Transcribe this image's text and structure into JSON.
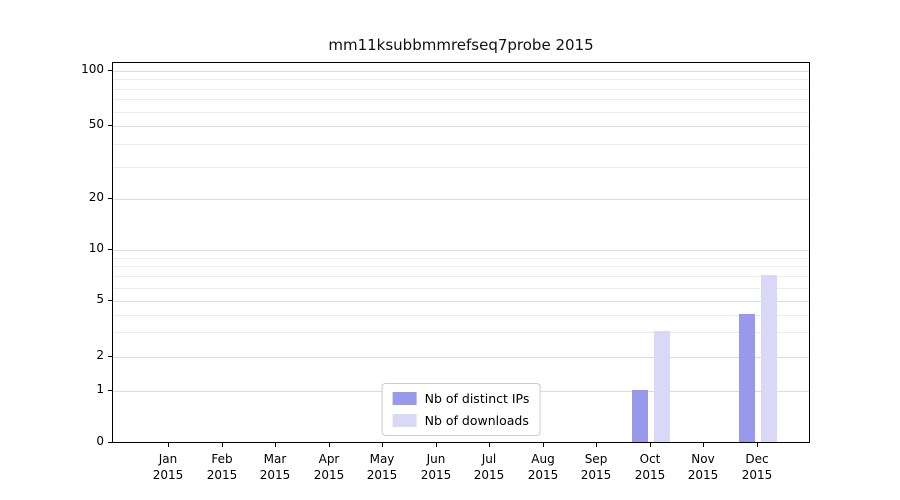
{
  "chart_data": {
    "type": "bar",
    "title": "mm11ksubbmmrefseq7probe 2015",
    "categories": [
      "Jan 2015",
      "Feb 2015",
      "Mar 2015",
      "Apr 2015",
      "May 2015",
      "Jun 2015",
      "Jul 2015",
      "Aug 2015",
      "Sep 2015",
      "Oct 2015",
      "Nov 2015",
      "Dec 2015"
    ],
    "series": [
      {
        "name": "Nb of distinct IPs",
        "color": "#9999ec",
        "values": [
          0,
          0,
          0,
          0,
          0,
          0,
          0,
          0,
          0,
          1,
          0,
          4
        ]
      },
      {
        "name": "Nb of downloads",
        "color": "#d9d9f7",
        "values": [
          0,
          0,
          0,
          0,
          0,
          0,
          0,
          0,
          0,
          3,
          0,
          7
        ]
      }
    ],
    "ylabel": "",
    "xlabel": "",
    "yticks": [
      0,
      1,
      2,
      5,
      10,
      20,
      50,
      100
    ],
    "minor_gridlines": [
      3,
      4,
      6,
      7,
      8,
      9,
      30,
      40,
      60,
      70,
      80,
      90
    ],
    "yscale": "log-with-zero",
    "ylim": [
      0,
      120
    ],
    "grid": true,
    "legend_position": "lower center"
  }
}
